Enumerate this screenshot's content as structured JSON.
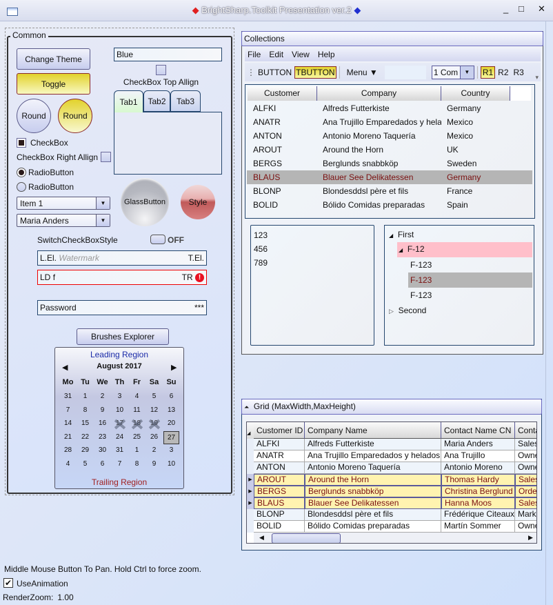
{
  "window": {
    "title": "BrightSharp.Toolkit Presentation ver.2",
    "controls": [
      "_",
      "□",
      "✕"
    ]
  },
  "common": {
    "group_label": "Common",
    "change_theme": "Change Theme",
    "toggle": "Toggle",
    "round1": "Round",
    "round2": "Round",
    "checkbox": "CheckBox",
    "checkbox_right": "CheckBox Right Allign",
    "radio1": "RadioButton",
    "radio2": "RadioButton",
    "combo1": "Item 1",
    "combo2": "Maria Anders",
    "text_blue": "Blue",
    "checkbox_top": "CheckBox Top Allign",
    "tabs": [
      "Tab1",
      "Tab2",
      "Tab3"
    ],
    "glass": "GlassButton",
    "style": "Style",
    "switch_label": "SwitchCheckBoxStyle",
    "switch_state": "OFF",
    "lel": "L.El.",
    "watermark": "Watermark",
    "tel": "T.El.",
    "ld": "LD",
    "ld_value": "f",
    "tr": "TR",
    "password_label": "Password",
    "password_value": "***",
    "brushes": "Brushes Explorer"
  },
  "calendar": {
    "leading": "Leading Region",
    "month": "August 2017",
    "trailing": "Trailing Region",
    "days": [
      "Mo",
      "Tu",
      "We",
      "Th",
      "Fr",
      "Sa",
      "Su"
    ],
    "weeks": [
      [
        "31",
        "1",
        "2",
        "3",
        "4",
        "5",
        "6"
      ],
      [
        "7",
        "8",
        "9",
        "10",
        "11",
        "12",
        "13"
      ],
      [
        "14",
        "15",
        "16",
        "17",
        "18",
        "19",
        "20"
      ],
      [
        "21",
        "22",
        "23",
        "24",
        "25",
        "26",
        "27"
      ],
      [
        "28",
        "29",
        "30",
        "31",
        "1",
        "2",
        "3"
      ],
      [
        "4",
        "5",
        "6",
        "7",
        "8",
        "9",
        "10"
      ]
    ],
    "blackout": [
      "17",
      "18",
      "19"
    ],
    "selected": "27"
  },
  "collections": {
    "title": "Collections",
    "menu": [
      "File",
      "Edit",
      "View",
      "Help"
    ],
    "toolbar": {
      "button": "BUTTON",
      "tbutton": "TBUTTON",
      "menu": "Menu ▼",
      "combo": "1 Com",
      "radios": [
        "R1",
        "R2",
        "R3"
      ]
    },
    "grid": {
      "columns": [
        "Customer",
        "Company",
        "Country"
      ],
      "rows": [
        [
          "ALFKI",
          "Alfreds Futterkiste",
          "Germany"
        ],
        [
          "ANATR",
          "Ana Trujillo Emparedados y hela",
          "Mexico"
        ],
        [
          "ANTON",
          "Antonio Moreno Taquería",
          "Mexico"
        ],
        [
          "AROUT",
          "Around the Horn",
          "UK"
        ],
        [
          "BERGS",
          "Berglunds snabbköp",
          "Sweden"
        ],
        [
          "BLAUS",
          "Blauer See Delikatessen",
          "Germany"
        ],
        [
          "BLONP",
          "Blondesddsl père et fils",
          "France"
        ],
        [
          "BOLID",
          "Bólido Comidas preparadas",
          "Spain"
        ]
      ],
      "selected_index": 5
    },
    "list": [
      "123",
      "456",
      "789"
    ],
    "tree": {
      "first": "First",
      "f12": "F-12",
      "children": [
        "F-123",
        "F-123",
        "F-123"
      ],
      "second": "Second"
    }
  },
  "grid2": {
    "title": "Grid (MaxWidth,MaxHeight)",
    "columns": [
      "Customer ID",
      "Company Name",
      "Contact Name CN",
      "Conta"
    ],
    "rows": [
      [
        "ALFKI",
        "Alfreds Futterkiste",
        "Maria Anders",
        "Sales"
      ],
      [
        "ANATR",
        "Ana Trujillo Emparedados y helados",
        "Ana Trujillo",
        "Owne"
      ],
      [
        "ANTON",
        "Antonio Moreno Taquería",
        "Antonio Moreno",
        "Owne"
      ],
      [
        "AROUT",
        "Around the Horn",
        "Thomas Hardy",
        "Sales"
      ],
      [
        "BERGS",
        "Berglunds snabbköp",
        "Christina Berglund",
        "Orde"
      ],
      [
        "BLAUS",
        "Blauer See Delikatessen",
        "Hanna Moos",
        "Sales"
      ],
      [
        "BLONP",
        "Blondesddsl père et fils",
        "Frédérique Citeaux",
        "Mark"
      ],
      [
        "BOLID",
        "Bólido Comidas preparadas",
        "Martín Sommer",
        "Owne"
      ]
    ],
    "selected_indices": [
      3,
      4,
      5
    ]
  },
  "footer": {
    "hint": "Middle Mouse Button To Pan. Hold Ctrl to force zoom.",
    "use_animation": "UseAnimation",
    "render_zoom_label": "RenderZoom:",
    "render_zoom": "1.00"
  },
  "colors": {
    "accent": "#6b6bc0",
    "toggle_yellow": "#e4d830",
    "selected_row": "#fff3b0",
    "tree_pink": "#ffbfca",
    "error": "#e81123"
  }
}
